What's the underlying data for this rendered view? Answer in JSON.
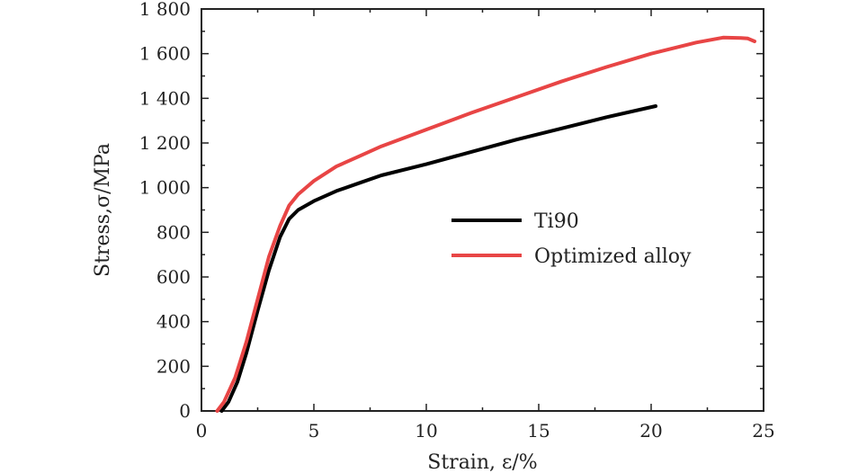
{
  "chart_data": {
    "type": "line",
    "xlabel": "Strain, ε/%",
    "ylabel": "Stress,σ/MPa",
    "xlim": [
      0,
      25
    ],
    "ylim": [
      0,
      1800
    ],
    "x_ticks": [
      0,
      5,
      10,
      15,
      20,
      25
    ],
    "x_tick_labels": [
      "0",
      "5",
      "10",
      "15",
      "20",
      "25"
    ],
    "y_ticks": [
      0,
      200,
      400,
      600,
      800,
      1000,
      1200,
      1400,
      1600,
      1800
    ],
    "y_tick_labels": [
      "0",
      "200",
      "400",
      "600",
      "800",
      "1 000",
      "1 200",
      "1 400",
      "1 600",
      "1 800"
    ],
    "grid": false,
    "legend_position": "center-right",
    "series": [
      {
        "name": "Ti90",
        "color": "#000000",
        "x": [
          0.9,
          1.2,
          1.6,
          2.0,
          2.5,
          3.0,
          3.5,
          3.9,
          4.3,
          5.0,
          6.0,
          7.0,
          8.0,
          10.0,
          12.0,
          14.0,
          16.0,
          18.0,
          20.2
        ],
        "y": [
          0,
          40,
          130,
          260,
          450,
          630,
          780,
          860,
          900,
          940,
          985,
          1020,
          1055,
          1105,
          1160,
          1215,
          1265,
          1315,
          1365
        ]
      },
      {
        "name": "Optimized alloy",
        "color": "#e84545",
        "x": [
          0.7,
          1.0,
          1.5,
          2.0,
          2.5,
          3.0,
          3.5,
          3.9,
          4.3,
          5.0,
          6.0,
          7.0,
          8.0,
          10.0,
          12.0,
          14.0,
          16.0,
          18.0,
          20.0,
          22.0,
          23.2,
          24.0,
          24.3,
          24.6
        ],
        "y": [
          0,
          40,
          150,
          310,
          500,
          690,
          830,
          920,
          970,
          1030,
          1095,
          1140,
          1185,
          1260,
          1335,
          1405,
          1475,
          1540,
          1600,
          1650,
          1672,
          1670,
          1668,
          1655
        ]
      }
    ]
  }
}
